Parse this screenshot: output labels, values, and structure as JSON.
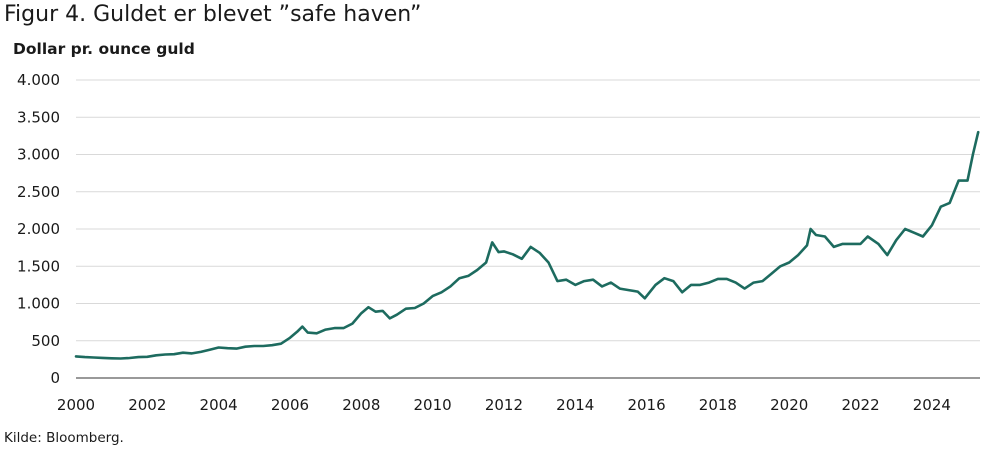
{
  "figure": {
    "title": "Figur 4. Guldet er blevet ”safe haven”",
    "source": "Kilde: Bloomberg."
  },
  "colors": {
    "line": "#1d6b5f",
    "grid": "#d9d9d9",
    "axis": "#333333"
  },
  "chart_data": {
    "type": "line",
    "title": "Figur 4. Guldet er blevet ”safe haven”",
    "ylabel": "Dollar pr. ounce guld",
    "xlabel": "",
    "ylim": [
      0,
      4000
    ],
    "xlim": [
      2000,
      2025.35
    ],
    "grid": true,
    "y_ticks": [
      0,
      500,
      1000,
      1500,
      2000,
      2500,
      3000,
      3500,
      4000
    ],
    "y_tick_labels": [
      "0",
      "500",
      "1.000",
      "1.500",
      "2.000",
      "2.500",
      "3.000",
      "3.500",
      "4.000"
    ],
    "x_ticks": [
      2000,
      2002,
      2004,
      2006,
      2008,
      2010,
      2012,
      2014,
      2016,
      2018,
      2020,
      2022,
      2024
    ],
    "x_tick_labels": [
      "2000",
      "2002",
      "2004",
      "2006",
      "2008",
      "2010",
      "2012",
      "2014",
      "2016",
      "2018",
      "2020",
      "2022",
      "2024"
    ],
    "series": [
      {
        "x": [
          2000.0,
          2000.25,
          2000.5,
          2000.75,
          2001.0,
          2001.25,
          2001.5,
          2001.75,
          2002.0,
          2002.25,
          2002.5,
          2002.75,
          2003.0,
          2003.25,
          2003.5,
          2003.75,
          2004.0,
          2004.25,
          2004.5,
          2004.75,
          2005.0,
          2005.25,
          2005.5,
          2005.75,
          2006.0,
          2006.2,
          2006.35,
          2006.5,
          2006.75,
          2007.0,
          2007.25,
          2007.5,
          2007.75,
          2008.0,
          2008.2,
          2008.4,
          2008.6,
          2008.8,
          2009.0,
          2009.25,
          2009.5,
          2009.75,
          2010.0,
          2010.25,
          2010.5,
          2010.75,
          2011.0,
          2011.25,
          2011.5,
          2011.67,
          2011.85,
          2012.0,
          2012.25,
          2012.5,
          2012.75,
          2013.0,
          2013.25,
          2013.5,
          2013.75,
          2014.0,
          2014.25,
          2014.5,
          2014.75,
          2015.0,
          2015.25,
          2015.5,
          2015.75,
          2015.95,
          2016.25,
          2016.5,
          2016.75,
          2017.0,
          2017.25,
          2017.5,
          2017.75,
          2018.0,
          2018.25,
          2018.5,
          2018.75,
          2019.0,
          2019.25,
          2019.5,
          2019.75,
          2020.0,
          2020.25,
          2020.5,
          2020.6,
          2020.75,
          2021.0,
          2021.25,
          2021.5,
          2021.75,
          2022.0,
          2022.2,
          2022.5,
          2022.75,
          2023.0,
          2023.25,
          2023.5,
          2023.75,
          2024.0,
          2024.25,
          2024.5,
          2024.75,
          2025.0,
          2025.15,
          2025.3
        ],
        "values": [
          290,
          280,
          275,
          270,
          265,
          262,
          268,
          280,
          285,
          305,
          315,
          320,
          340,
          330,
          350,
          380,
          410,
          400,
          395,
          420,
          430,
          430,
          440,
          460,
          540,
          620,
          690,
          610,
          600,
          650,
          670,
          670,
          730,
          870,
          950,
          890,
          900,
          800,
          850,
          930,
          940,
          1000,
          1100,
          1150,
          1230,
          1340,
          1370,
          1450,
          1550,
          1820,
          1690,
          1700,
          1660,
          1600,
          1760,
          1680,
          1550,
          1300,
          1320,
          1250,
          1300,
          1320,
          1230,
          1280,
          1200,
          1180,
          1160,
          1070,
          1250,
          1340,
          1300,
          1150,
          1250,
          1250,
          1280,
          1330,
          1330,
          1280,
          1200,
          1280,
          1300,
          1400,
          1500,
          1550,
          1650,
          1780,
          2000,
          1920,
          1900,
          1760,
          1800,
          1800,
          1800,
          1900,
          1800,
          1650,
          1850,
          2000,
          1950,
          1900,
          2050,
          2300,
          2350,
          2650,
          2650,
          3000,
          3300
        ]
      }
    ]
  }
}
